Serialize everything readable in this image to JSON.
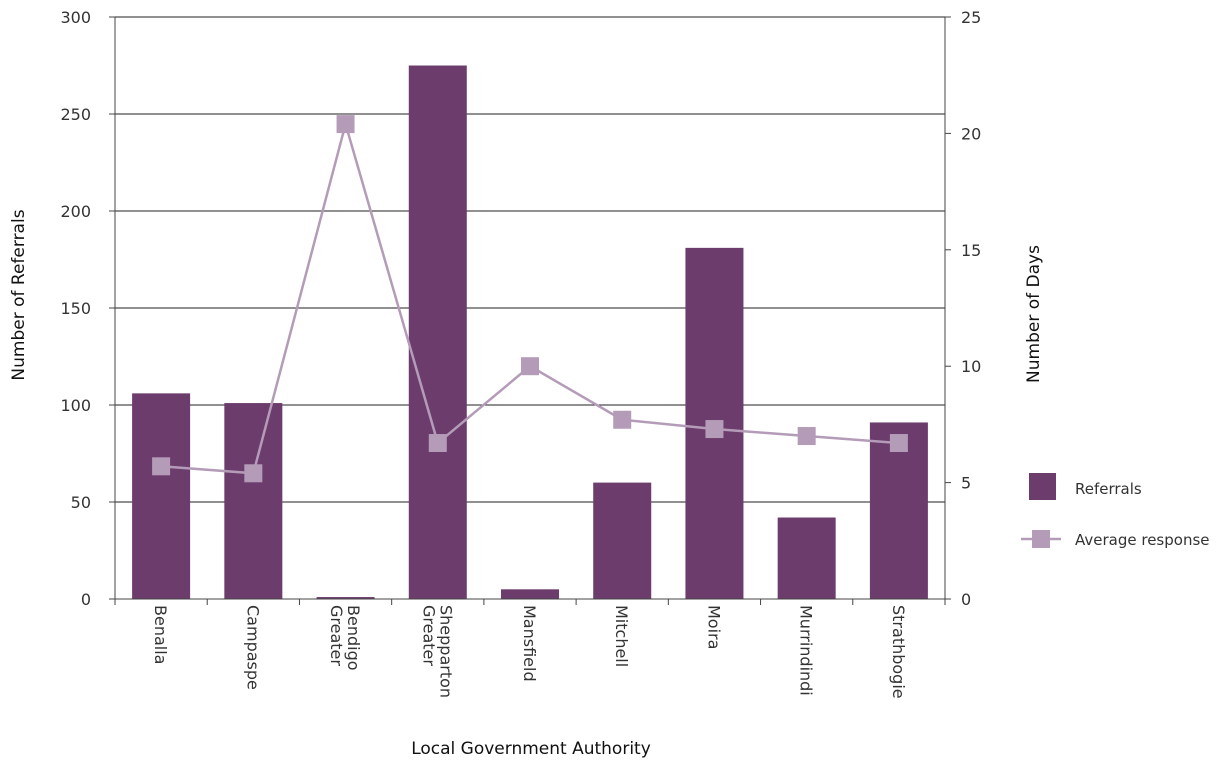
{
  "chart_data": {
    "type": "bar",
    "categories": [
      [
        "Benalla"
      ],
      [
        "Campaspe"
      ],
      [
        "Greater",
        "Bendigo"
      ],
      [
        "Greater",
        "Shepparton"
      ],
      [
        "Mansfield"
      ],
      [
        "Mitchell"
      ],
      [
        "Moira"
      ],
      [
        "Murrindindi"
      ],
      [
        "Strathbogie"
      ]
    ],
    "series": [
      {
        "name": "Referrals",
        "type": "bar",
        "axis": "left",
        "color": "#6b3c6c",
        "values": [
          106,
          101,
          1,
          275,
          5,
          60,
          181,
          42,
          91
        ]
      },
      {
        "name": "Average response",
        "type": "line",
        "axis": "right",
        "color": "#b49bb8",
        "values": [
          5.7,
          5.4,
          20.4,
          6.7,
          10.0,
          7.7,
          7.3,
          7.0,
          6.7
        ]
      }
    ],
    "xlabel": "Local Government Authority",
    "ylabel": "Number of Referrals",
    "y2label": "Number of Days",
    "ylim": [
      0,
      300
    ],
    "y2lim": [
      0,
      25
    ],
    "yticks": [
      0,
      50,
      100,
      150,
      200,
      250,
      300
    ],
    "y2ticks": [
      0,
      5,
      10,
      15,
      20,
      25
    ],
    "grid": true,
    "legend_position": "right"
  }
}
